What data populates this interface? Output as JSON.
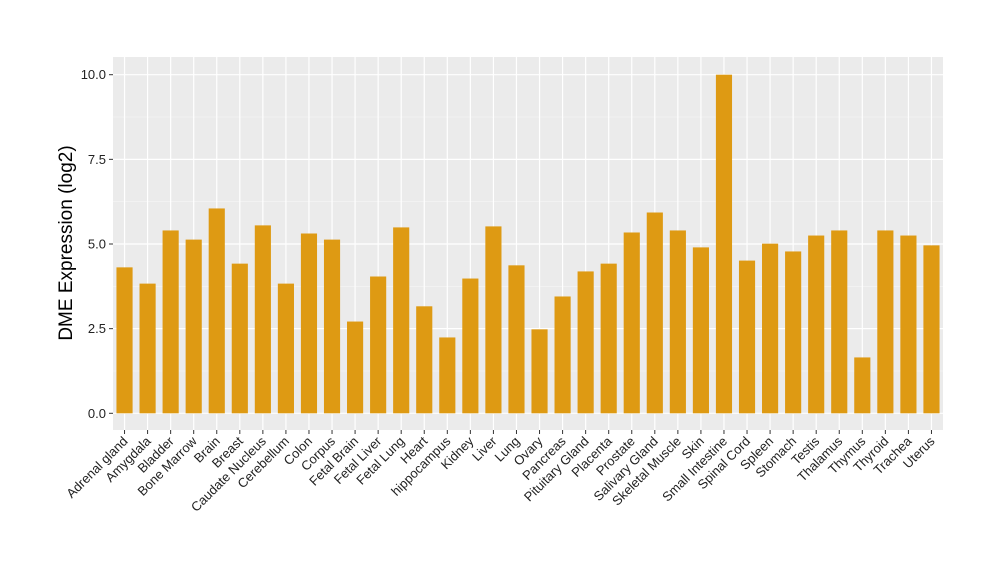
{
  "chart_data": {
    "type": "bar",
    "title": "",
    "xlabel": "",
    "ylabel": "DME Expression (log2)",
    "ylim": [
      -0.5,
      10.5
    ],
    "yticks": [
      "0.0",
      "2.5",
      "5.0",
      "7.5",
      "10.0"
    ],
    "grid": true,
    "bar_color": "#DE9A13",
    "panel_color": "#EBEBEB",
    "categories": [
      "Adrenal gland",
      "Amygdala",
      "Bladder",
      "Bone Marrow",
      "Brain",
      "Breast",
      "Caudate Nucleus",
      "Cerebellum",
      "Colon",
      "Corpus",
      "Fetal Brain",
      "Fetal Liver",
      "Fetal Lung",
      "Heart",
      "hippocampus",
      "Kidney",
      "Liver",
      "Lung",
      "Ovary",
      "Pancreas",
      "Pituitary Gland",
      "Placenta",
      "Prostate",
      "Salivary Gland",
      "Skeletal Muscle",
      "Skin",
      "Small Intestine",
      "Spinal Cord",
      "Spleen",
      "Stomach",
      "Testis",
      "Thalamus",
      "Thymus",
      "Thyroid",
      "Trachea",
      "Uterus"
    ],
    "values": [
      4.31,
      3.83,
      5.4,
      5.13,
      6.05,
      4.42,
      5.55,
      3.83,
      5.31,
      5.13,
      2.71,
      4.04,
      5.49,
      3.16,
      2.24,
      3.98,
      5.52,
      4.37,
      2.48,
      3.45,
      4.19,
      4.42,
      5.34,
      5.93,
      5.4,
      4.9,
      10.0,
      4.51,
      5.01,
      4.78,
      5.25,
      5.4,
      1.65,
      5.4,
      5.25,
      4.96
    ]
  }
}
